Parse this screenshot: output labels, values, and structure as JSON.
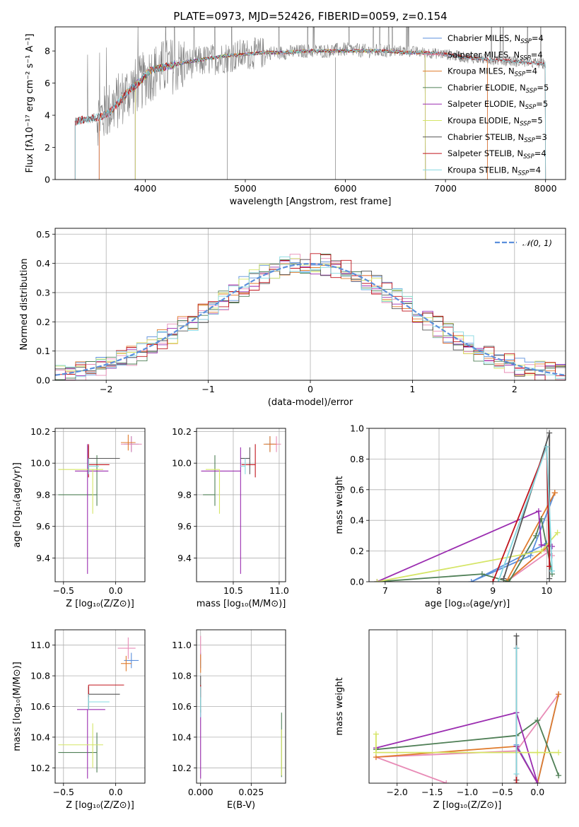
{
  "colors": {
    "chabrier_miles": "#5b8fdc",
    "salpeter_miles": "#e88bb6",
    "kroupa_miles": "#e07b2c",
    "chabrier_elodie": "#4f7f56",
    "salpeter_elodie": "#9b2db0",
    "kroupa_elodie": "#d5e566",
    "chabrier_stelib": "#555555",
    "salpeter_stelib": "#c0141c",
    "kroupa_stelib": "#84d8e0",
    "data": "#808080",
    "normal": "#5b8fdc"
  },
  "chart_data": [
    {
      "id": "spectrum",
      "type": "line",
      "title": "PLATE=0973, MJD=52426, FIBERID=0059, z=0.154",
      "xlabel": "wavelength [Angstrom, rest frame]",
      "ylabel": "Flux [fλ10⁻¹⁷ erg cm⁻² s⁻¹ A⁻¹]",
      "xlim": [
        3100,
        8200
      ],
      "ylim": [
        0,
        9.5
      ],
      "xticks": [
        4000,
        5000,
        6000,
        7000,
        8000
      ],
      "yticks": [
        0,
        2,
        4,
        6,
        8
      ],
      "legend": {
        "placement": "right",
        "entries": [
          "Chabrier MILES, N_SSP=4",
          "Salpeter MILES, N_SSP=4",
          "Kroupa MILES, N_SSP=4",
          "Chabrier ELODIE, N_SSP=5",
          "Salpeter ELODIE, N_SSP=5",
          "Kroupa ELODIE, N_SSP=5",
          "Chabrier STELIB, N_SSP=3",
          "Salpeter STELIB, N_SSP=4",
          "Kroupa STELIB, N_SSP=4"
        ]
      },
      "data_curve": {
        "x": [
          3300,
          3450,
          3550,
          3650,
          3750,
          3850,
          3950,
          4050,
          4200,
          4400,
          4600,
          4800,
          5000,
          5200,
          5400,
          5600,
          5800,
          6000,
          6200,
          6400,
          6600,
          6800,
          7000,
          7200,
          7400,
          7600,
          7800,
          8000
        ],
        "y": [
          3.6,
          3.8,
          3.9,
          4.4,
          5.0,
          5.6,
          6.0,
          6.6,
          7.0,
          7.2,
          7.4,
          7.6,
          7.8,
          7.9,
          7.9,
          8.0,
          8.0,
          8.1,
          8.0,
          8.0,
          8.0,
          7.9,
          7.8,
          7.6,
          7.5,
          7.4,
          7.3,
          7.2
        ]
      },
      "model_curve": {
        "x": [
          3300,
          3450,
          3550,
          3650,
          3750,
          3850,
          3950,
          4050,
          4200,
          4400,
          4600,
          4800,
          5000,
          5200,
          5400,
          5600,
          5800,
          6000,
          6200,
          6400,
          6600,
          6800,
          7000,
          7200,
          7400,
          7600,
          7800,
          8000
        ],
        "y": [
          3.6,
          3.8,
          3.9,
          4.2,
          4.9,
          5.6,
          6.1,
          6.8,
          7.0,
          7.3,
          7.5,
          7.7,
          7.8,
          7.9,
          7.9,
          8.0,
          8.0,
          8.0,
          8.0,
          8.0,
          7.9,
          7.9,
          7.8,
          7.6,
          7.5,
          7.4,
          7.3,
          7.2
        ]
      },
      "model_ranges": {
        "chabrier_miles": [
          3540,
          7420
        ],
        "salpeter_miles": [
          3540,
          7420
        ],
        "kroupa_miles": [
          3540,
          7420
        ],
        "chabrier_elodie": [
          3900,
          6800
        ],
        "salpeter_elodie": [
          3900,
          6800
        ],
        "kroupa_elodie": [
          3900,
          6800
        ],
        "chabrier_stelib": [
          3300,
          8000
        ],
        "salpeter_stelib": [
          3300,
          8000
        ],
        "kroupa_stelib": [
          3300,
          8000
        ]
      }
    },
    {
      "id": "residuals",
      "type": "histogram",
      "xlabel": "(data-model)/error",
      "ylabel": "Normed distribution",
      "xlim": [
        -2.5,
        2.5
      ],
      "ylim": [
        0,
        0.52
      ],
      "xticks": [
        -2,
        -1,
        0,
        1,
        2
      ],
      "yticks": [
        0.0,
        0.1,
        0.2,
        0.3,
        0.4,
        0.5
      ],
      "legend": {
        "placement": "top-right",
        "entries": [
          "𝒩(0, 1)"
        ]
      },
      "normal_curve": {
        "mu": 0,
        "sigma": 1
      },
      "bin_width": 0.1,
      "grid": true
    },
    {
      "id": "age_vs_Z",
      "type": "errorbar",
      "xlabel": "Z [log₁₀(Z/Z⊙)]",
      "ylabel": "age  [log₁₀(age/yr)]",
      "xlim": [
        -0.58,
        0.28
      ],
      "ylim": [
        9.25,
        10.22
      ],
      "xticks": [
        -0.5,
        0.0
      ],
      "yticks": [
        9.4,
        9.6,
        9.8,
        10.0,
        10.2
      ],
      "points": [
        {
          "model": "chabrier_miles",
          "x": 0.15,
          "xerr": [
            0.07,
            0.07
          ],
          "y": 10.12,
          "yerr": [
            0.05,
            0.05
          ]
        },
        {
          "model": "salpeter_miles",
          "x": 0.15,
          "xerr": [
            0.1,
            0.1
          ],
          "y": 10.12,
          "yerr": [
            0.05,
            0.05
          ]
        },
        {
          "model": "kroupa_miles",
          "x": 0.12,
          "xerr": [
            0.07,
            0.07
          ],
          "y": 10.13,
          "yerr": [
            0.05,
            0.05
          ]
        },
        {
          "model": "chabrier_elodie",
          "x": -0.18,
          "xerr": [
            0.37,
            0.0
          ],
          "y": 9.8,
          "yerr": [
            0.07,
            0.25
          ]
        },
        {
          "model": "salpeter_elodie",
          "x": -0.27,
          "xerr": [
            0.12,
            0.2
          ],
          "y": 9.95,
          "yerr": [
            0.65,
            0.17
          ]
        },
        {
          "model": "kroupa_elodie",
          "x": -0.22,
          "xerr": [
            0.33,
            0.1
          ],
          "y": 9.96,
          "yerr": [
            0.28,
            0.0
          ]
        },
        {
          "model": "chabrier_stelib",
          "x": -0.26,
          "xerr": [
            0.0,
            0.3
          ],
          "y": 10.03,
          "yerr": [
            0.1,
            0.08
          ]
        },
        {
          "model": "salpeter_stelib",
          "x": -0.26,
          "xerr": [
            0.0,
            0.2
          ],
          "y": 9.99,
          "yerr": [
            0.08,
            0.13
          ]
        },
        {
          "model": "kroupa_stelib",
          "x": -0.26,
          "xerr": [
            0.0,
            0.1
          ],
          "y": 9.98,
          "yerr": [
            0.05,
            0.05
          ]
        }
      ]
    },
    {
      "id": "age_vs_mass",
      "type": "errorbar",
      "xlabel": "mass [log₁₀(M/M⊙)]",
      "ylabel": "",
      "xlim": [
        10.1,
        11.07
      ],
      "ylim": [
        9.25,
        10.22
      ],
      "xticks": [
        10.5,
        11.0
      ],
      "yticks": [
        9.4,
        9.6,
        9.8,
        10.0,
        10.2
      ],
      "points": [
        {
          "model": "chabrier_miles",
          "x": 10.9,
          "xerr": [
            0.05,
            0.05
          ],
          "y": 10.12,
          "yerr": [
            0.05,
            0.05
          ]
        },
        {
          "model": "salpeter_miles",
          "x": 10.97,
          "xerr": [
            0.08,
            0.05
          ],
          "y": 10.12,
          "yerr": [
            0.05,
            0.05
          ]
        },
        {
          "model": "kroupa_miles",
          "x": 10.9,
          "xerr": [
            0.07,
            0.07
          ],
          "y": 10.12,
          "yerr": [
            0.05,
            0.05
          ]
        },
        {
          "model": "chabrier_elodie",
          "x": 10.3,
          "xerr": [
            0.13,
            0.0
          ],
          "y": 9.8,
          "yerr": [
            0.07,
            0.25
          ]
        },
        {
          "model": "salpeter_elodie",
          "x": 10.58,
          "xerr": [
            0.43,
            0.0
          ],
          "y": 9.95,
          "yerr": [
            0.65,
            0.15
          ]
        },
        {
          "model": "kroupa_elodie",
          "x": 10.35,
          "xerr": [
            0.15,
            0.0
          ],
          "y": 9.96,
          "yerr": [
            0.28,
            0.0
          ]
        },
        {
          "model": "chabrier_stelib",
          "x": 10.68,
          "xerr": [
            0.1,
            0.0
          ],
          "y": 10.03,
          "yerr": [
            0.1,
            0.07
          ]
        },
        {
          "model": "salpeter_stelib",
          "x": 10.74,
          "xerr": [
            0.15,
            0.0
          ],
          "y": 9.99,
          "yerr": [
            0.08,
            0.13
          ]
        },
        {
          "model": "kroupa_stelib",
          "x": 10.63,
          "xerr": [
            0.05,
            0.0
          ],
          "y": 9.98,
          "yerr": [
            0.05,
            0.05
          ]
        }
      ]
    },
    {
      "id": "weight_vs_age",
      "type": "line",
      "xlabel": "age  [log₁₀(age/yr)]",
      "ylabel": "mass weight",
      "xlim": [
        6.7,
        10.35
      ],
      "ylim": [
        0,
        1.0
      ],
      "xticks": [
        7,
        8,
        9,
        10
      ],
      "yticks": [
        0.0,
        0.2,
        0.4,
        0.6,
        0.8,
        1.0
      ],
      "grid": true,
      "series": [
        {
          "model": "chabrier_miles",
          "x": [
            10.0,
            8.6,
            9.7,
            10.15
          ],
          "y": [
            0.25,
            0.0,
            0.17,
            0.58
          ]
        },
        {
          "model": "salpeter_miles",
          "x": [
            10.05,
            9.25,
            9.95,
            10.1
          ],
          "y": [
            0.2,
            0.0,
            0.21,
            0.17
          ]
        },
        {
          "model": "kroupa_miles",
          "x": [
            10.05,
            9.25,
            10.15,
            10.15
          ],
          "y": [
            0.24,
            0.0,
            0.58,
            0.58
          ]
        },
        {
          "model": "chabrier_elodie",
          "x": [
            6.85,
            8.8,
            9.3,
            9.8,
            9.9,
            10.1
          ],
          "y": [
            0.0,
            0.05,
            0.0,
            0.3,
            0.41,
            0.05
          ]
        },
        {
          "model": "salpeter_elodie",
          "x": [
            6.85,
            9.85,
            9.9,
            10.1
          ],
          "y": [
            0.0,
            0.46,
            0.24,
            0.23
          ]
        },
        {
          "model": "kroupa_elodie",
          "x": [
            6.85,
            9.9,
            10.2
          ],
          "y": [
            0.0,
            0.2,
            0.32
          ]
        },
        {
          "model": "chabrier_stelib",
          "x": [
            9.2,
            10.05,
            10.05
          ],
          "y": [
            0.02,
            0.97,
            0.02
          ]
        },
        {
          "model": "salpeter_stelib",
          "x": [
            9.0,
            10.0,
            10.05
          ],
          "y": [
            0.0,
            0.88,
            0.1
          ]
        },
        {
          "model": "kroupa_stelib",
          "x": [
            9.1,
            10.0,
            10.1
          ],
          "y": [
            0.0,
            0.88,
            0.07
          ]
        }
      ]
    },
    {
      "id": "mass_vs_Z",
      "type": "errorbar",
      "xlabel": "Z [log₁₀(Z/Z⊙)]",
      "ylabel": "mass [log₁₀(M/M⊙)]",
      "xlim": [
        -0.58,
        0.28
      ],
      "ylim": [
        10.1,
        11.1
      ],
      "xticks": [
        -0.5,
        0.0
      ],
      "yticks": [
        10.2,
        10.4,
        10.6,
        10.8,
        11.0
      ],
      "points": [
        {
          "model": "chabrier_miles",
          "x": 0.15,
          "xerr": [
            0.07,
            0.07
          ],
          "y": 10.9,
          "yerr": [
            0.05,
            0.05
          ]
        },
        {
          "model": "salpeter_miles",
          "x": 0.12,
          "xerr": [
            0.1,
            0.07
          ],
          "y": 10.98,
          "yerr": [
            0.07,
            0.07
          ]
        },
        {
          "model": "kroupa_miles",
          "x": 0.1,
          "xerr": [
            0.05,
            0.05
          ],
          "y": 10.88,
          "yerr": [
            0.05,
            0.05
          ]
        },
        {
          "model": "chabrier_elodie",
          "x": -0.18,
          "xerr": [
            0.37,
            0.0
          ],
          "y": 10.3,
          "yerr": [
            0.13,
            0.13
          ]
        },
        {
          "model": "salpeter_elodie",
          "x": -0.27,
          "xerr": [
            0.1,
            0.17
          ],
          "y": 10.58,
          "yerr": [
            0.45,
            0.0
          ]
        },
        {
          "model": "kroupa_elodie",
          "x": -0.22,
          "xerr": [
            0.33,
            0.1
          ],
          "y": 10.35,
          "yerr": [
            0.15,
            0.14
          ]
        },
        {
          "model": "chabrier_stelib",
          "x": -0.26,
          "xerr": [
            0.0,
            0.3
          ],
          "y": 10.68,
          "yerr": [
            0.1,
            0.05
          ]
        },
        {
          "model": "salpeter_stelib",
          "x": -0.26,
          "xerr": [
            0.0,
            0.34
          ],
          "y": 10.74,
          "yerr": [
            0.08,
            0.0
          ]
        },
        {
          "model": "kroupa_stelib",
          "x": -0.26,
          "xerr": [
            0.0,
            0.2
          ],
          "y": 10.63,
          "yerr": [
            0.05,
            0.05
          ]
        }
      ]
    },
    {
      "id": "mass_vs_ebv",
      "type": "errorbar",
      "xlabel": "E(B-V)",
      "ylabel": "",
      "xlim": [
        -0.002,
        0.042
      ],
      "ylim": [
        10.1,
        11.1
      ],
      "xticks": [
        0.0,
        0.025
      ],
      "xticklabels": [
        "0.000",
        "0.025"
      ],
      "yticks": [
        10.2,
        10.4,
        10.6,
        10.8,
        11.0
      ],
      "points": [
        {
          "model": "chabrier_miles",
          "x": 0.0,
          "xerr": [
            0,
            0
          ],
          "y": 10.9,
          "yerr": [
            0.05,
            0.05
          ]
        },
        {
          "model": "salpeter_miles",
          "x": 0.0,
          "xerr": [
            0,
            0
          ],
          "y": 10.98,
          "yerr": [
            0.08,
            0.08
          ]
        },
        {
          "model": "kroupa_miles",
          "x": 0.0,
          "xerr": [
            0,
            0
          ],
          "y": 10.88,
          "yerr": [
            0.06,
            0.06
          ]
        },
        {
          "model": "chabrier_elodie",
          "x": 0.04,
          "xerr": [
            0,
            0
          ],
          "y": 10.35,
          "yerr": [
            0.21,
            0.21
          ]
        },
        {
          "model": "salpeter_elodie",
          "x": 0.0,
          "xerr": [
            0,
            0
          ],
          "y": 10.58,
          "yerr": [
            0.45,
            0.0
          ]
        },
        {
          "model": "kroupa_elodie",
          "x": 0.04,
          "xerr": [
            0,
            0
          ],
          "y": 10.3,
          "yerr": [
            0.15,
            0.15
          ]
        },
        {
          "model": "chabrier_stelib",
          "x": 0.0,
          "xerr": [
            0,
            0
          ],
          "y": 10.68,
          "yerr": [
            0.12,
            0.12
          ]
        },
        {
          "model": "salpeter_stelib",
          "x": 0.0,
          "xerr": [
            0,
            0
          ],
          "y": 10.74,
          "yerr": [
            0.08,
            0.0
          ]
        },
        {
          "model": "kroupa_stelib",
          "x": 0.0,
          "xerr": [
            0,
            0
          ],
          "y": 10.63,
          "yerr": [
            0.1,
            0.1
          ]
        }
      ]
    },
    {
      "id": "weight_vs_Z",
      "type": "line",
      "xlabel": "Z [log₁₀(Z/Z⊙)]",
      "ylabel": "mass weight",
      "xlim": [
        -2.4,
        0.4
      ],
      "ylim": [
        0,
        1.0
      ],
      "xticks": [
        -2.0,
        -1.5,
        -1.0,
        -0.5,
        0.0
      ],
      "grid": true,
      "series": [
        {
          "model": "chabrier_miles",
          "x": [
            -0.3,
            0.0,
            0.3
          ],
          "y": [
            0.25,
            0.0,
            0.58
          ]
        },
        {
          "model": "salpeter_miles",
          "x": [
            -1.3,
            -2.3,
            -0.3,
            0.3
          ],
          "y": [
            0.0,
            0.17,
            0.21,
            0.58
          ]
        },
        {
          "model": "kroupa_miles",
          "x": [
            -2.3,
            -0.3,
            0.0,
            0.3
          ],
          "y": [
            0.17,
            0.24,
            0.0,
            0.58
          ]
        },
        {
          "model": "chabrier_elodie",
          "x": [
            -2.3,
            -0.3,
            0.0,
            0.3
          ],
          "y": [
            0.22,
            0.31,
            0.41,
            0.05
          ]
        },
        {
          "model": "salpeter_elodie",
          "x": [
            -2.3,
            -0.3,
            0.0,
            -0.3
          ],
          "y": [
            0.23,
            0.46,
            0.0,
            0.24
          ]
        },
        {
          "model": "kroupa_elodie",
          "x": [
            -2.3,
            -2.3,
            0.0,
            0.3
          ],
          "y": [
            0.32,
            0.2,
            0.2,
            0.2
          ]
        },
        {
          "model": "chabrier_stelib",
          "x": [
            -0.3,
            -0.3
          ],
          "y": [
            0.96,
            0.02
          ]
        },
        {
          "model": "salpeter_stelib",
          "x": [
            -0.3,
            -0.3
          ],
          "y": [
            0.88,
            0.0
          ]
        },
        {
          "model": "kroupa_stelib",
          "x": [
            -0.3,
            -0.3
          ],
          "y": [
            0.88,
            0.06
          ]
        }
      ]
    }
  ]
}
